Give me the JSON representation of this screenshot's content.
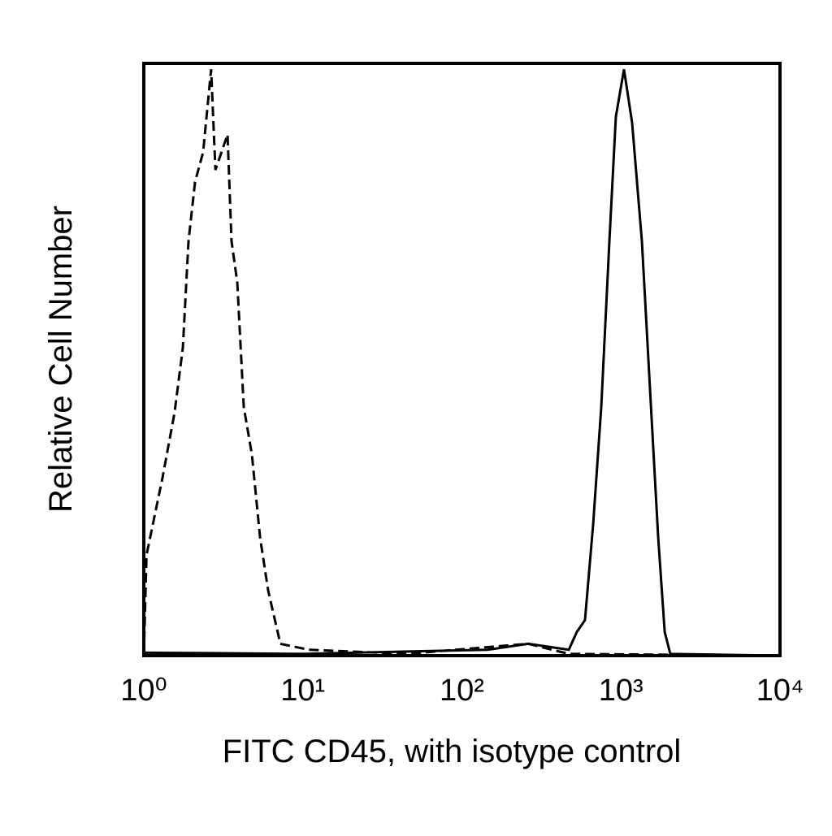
{
  "chart_data": {
    "type": "line",
    "xlabel": "FITC CD45, with isotype control",
    "ylabel": "Relative Cell Number",
    "xscale": "log",
    "xlim": [
      1,
      10000
    ],
    "xticks": [
      {
        "value": 1,
        "label": "10⁰"
      },
      {
        "value": 10,
        "label": "10¹"
      },
      {
        "value": 100,
        "label": "10²"
      },
      {
        "value": 1000,
        "label": "10³"
      },
      {
        "value": 10000,
        "label": "10⁴"
      }
    ],
    "ylim": [
      0,
      100
    ],
    "series": [
      {
        "color": "#000000",
        "dashed": true,
        "x": [
          1,
          1.04,
          1.31,
          1.56,
          1.76,
          1.91,
          2.1,
          2.36,
          2.65,
          2.82,
          3.36,
          3.56,
          3.87,
          4.25,
          4.78,
          5.38,
          6.05,
          7.22,
          10.9,
          44.7,
          261,
          470,
          10000
        ],
        "values": [
          0,
          17,
          30,
          41,
          52,
          70,
          80,
          85,
          99,
          82,
          88,
          70,
          63,
          42,
          34,
          20,
          11,
          2,
          1,
          0.3,
          2,
          0.3,
          0
        ]
      },
      {
        "color": "#000000",
        "dashed": false,
        "x": [
          1,
          10,
          145,
          261,
          470,
          528,
          594,
          668,
          752,
          846,
          929,
          1045,
          1175,
          1354,
          1523,
          1714,
          1884,
          2043,
          10000
        ],
        "values": [
          0.5,
          0.3,
          1,
          2,
          1,
          4,
          6,
          22,
          42,
          70,
          91,
          99,
          90,
          70,
          45,
          20,
          4,
          0.3,
          0
        ]
      }
    ]
  }
}
